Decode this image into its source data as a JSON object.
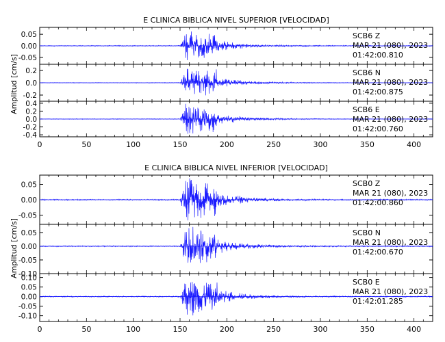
{
  "chart_data": [
    {
      "type": "line",
      "title": "E CLINICA BIBLICA NIVEL SUPERIOR [VELOCIDAD]",
      "ylabel": "Amplitud [cm/s]",
      "xlim": [
        0,
        420
      ],
      "x_ticks": [
        "0",
        "50",
        "100",
        "150",
        "200",
        "250",
        "300",
        "350",
        "400"
      ],
      "series_color": "#1a1aff",
      "panels": [
        {
          "station": "SCB6",
          "component": "Z",
          "date_text": "MAR 21 (080), 2023",
          "time_text": "01:42:00.810",
          "ylim": [
            -0.08,
            0.08
          ],
          "y_ticks": [
            "0.05",
            "0.00",
            "-0.05"
          ],
          "y_tick_values": [
            0.05,
            0.0,
            -0.05
          ],
          "onset_s": 150,
          "peak_amplitude": 0.07,
          "noise_amplitude": 0.002,
          "coda_end_s": 420
        },
        {
          "station": "SCB6",
          "component": "N",
          "date_text": "MAR 21 (080), 2023",
          "time_text": "01:42:00.875",
          "ylim": [
            -0.3,
            0.3
          ],
          "y_ticks": [
            "0.2",
            "0.0",
            "-0.2"
          ],
          "y_tick_values": [
            0.2,
            0.0,
            -0.2
          ],
          "onset_s": 150,
          "peak_amplitude": 0.25,
          "noise_amplitude": 0.005,
          "coda_end_s": 420
        },
        {
          "station": "SCB6",
          "component": "E",
          "date_text": "MAR 21 (080), 2023",
          "time_text": "01:42:00.760",
          "ylim": [
            -0.45,
            0.45
          ],
          "y_ticks": [
            "0.4",
            "0.2",
            "0.0",
            "-0.2",
            "-0.4"
          ],
          "y_tick_values": [
            0.4,
            0.2,
            0.0,
            -0.2,
            -0.4
          ],
          "onset_s": 150,
          "peak_amplitude": 0.42,
          "noise_amplitude": 0.008,
          "coda_end_s": 420
        }
      ]
    },
    {
      "type": "line",
      "title": "E CLINICA BIBLICA NIVEL INFERIOR [VELOCIDAD]",
      "ylabel": "Amplitud [cm/s]",
      "xlim": [
        0,
        420
      ],
      "x_ticks": [
        "0",
        "50",
        "100",
        "150",
        "200",
        "250",
        "300",
        "350",
        "400"
      ],
      "series_color": "#1a1aff",
      "panels": [
        {
          "station": "SCB0",
          "component": "Z",
          "date_text": "MAR 21 (080), 2023",
          "time_text": "01:42:00.860",
          "ylim": [
            -0.08,
            0.08
          ],
          "y_ticks": [
            "0.05",
            "0.00",
            "-0.05"
          ],
          "y_tick_values": [
            0.05,
            0.0,
            -0.05
          ],
          "onset_s": 150,
          "peak_amplitude": 0.075,
          "noise_amplitude": 0.002,
          "coda_end_s": 420
        },
        {
          "station": "SCB0",
          "component": "N",
          "date_text": "MAR 21 (080), 2023",
          "time_text": "01:42:00.670",
          "ylim": [
            -0.1,
            0.08
          ],
          "y_ticks": [
            "0.05",
            "0.00",
            "-0.05",
            "-0.10"
          ],
          "y_tick_values": [
            0.05,
            0.0,
            -0.05,
            -0.1
          ],
          "onset_s": 150,
          "peak_amplitude": 0.075,
          "noise_amplitude": 0.002,
          "coda_end_s": 420
        },
        {
          "station": "SCB0",
          "component": "E",
          "date_text": "MAR 21 (080), 2023",
          "time_text": "01:42:01.285",
          "ylim": [
            -0.13,
            0.12
          ],
          "y_ticks": [
            "0.10",
            "0.05",
            "0.00",
            "-0.05",
            "-0.10"
          ],
          "y_tick_values": [
            0.1,
            0.05,
            0.0,
            -0.05,
            -0.1
          ],
          "onset_s": 150,
          "peak_amplitude": 0.11,
          "noise_amplitude": 0.003,
          "coda_end_s": 420
        }
      ]
    }
  ]
}
